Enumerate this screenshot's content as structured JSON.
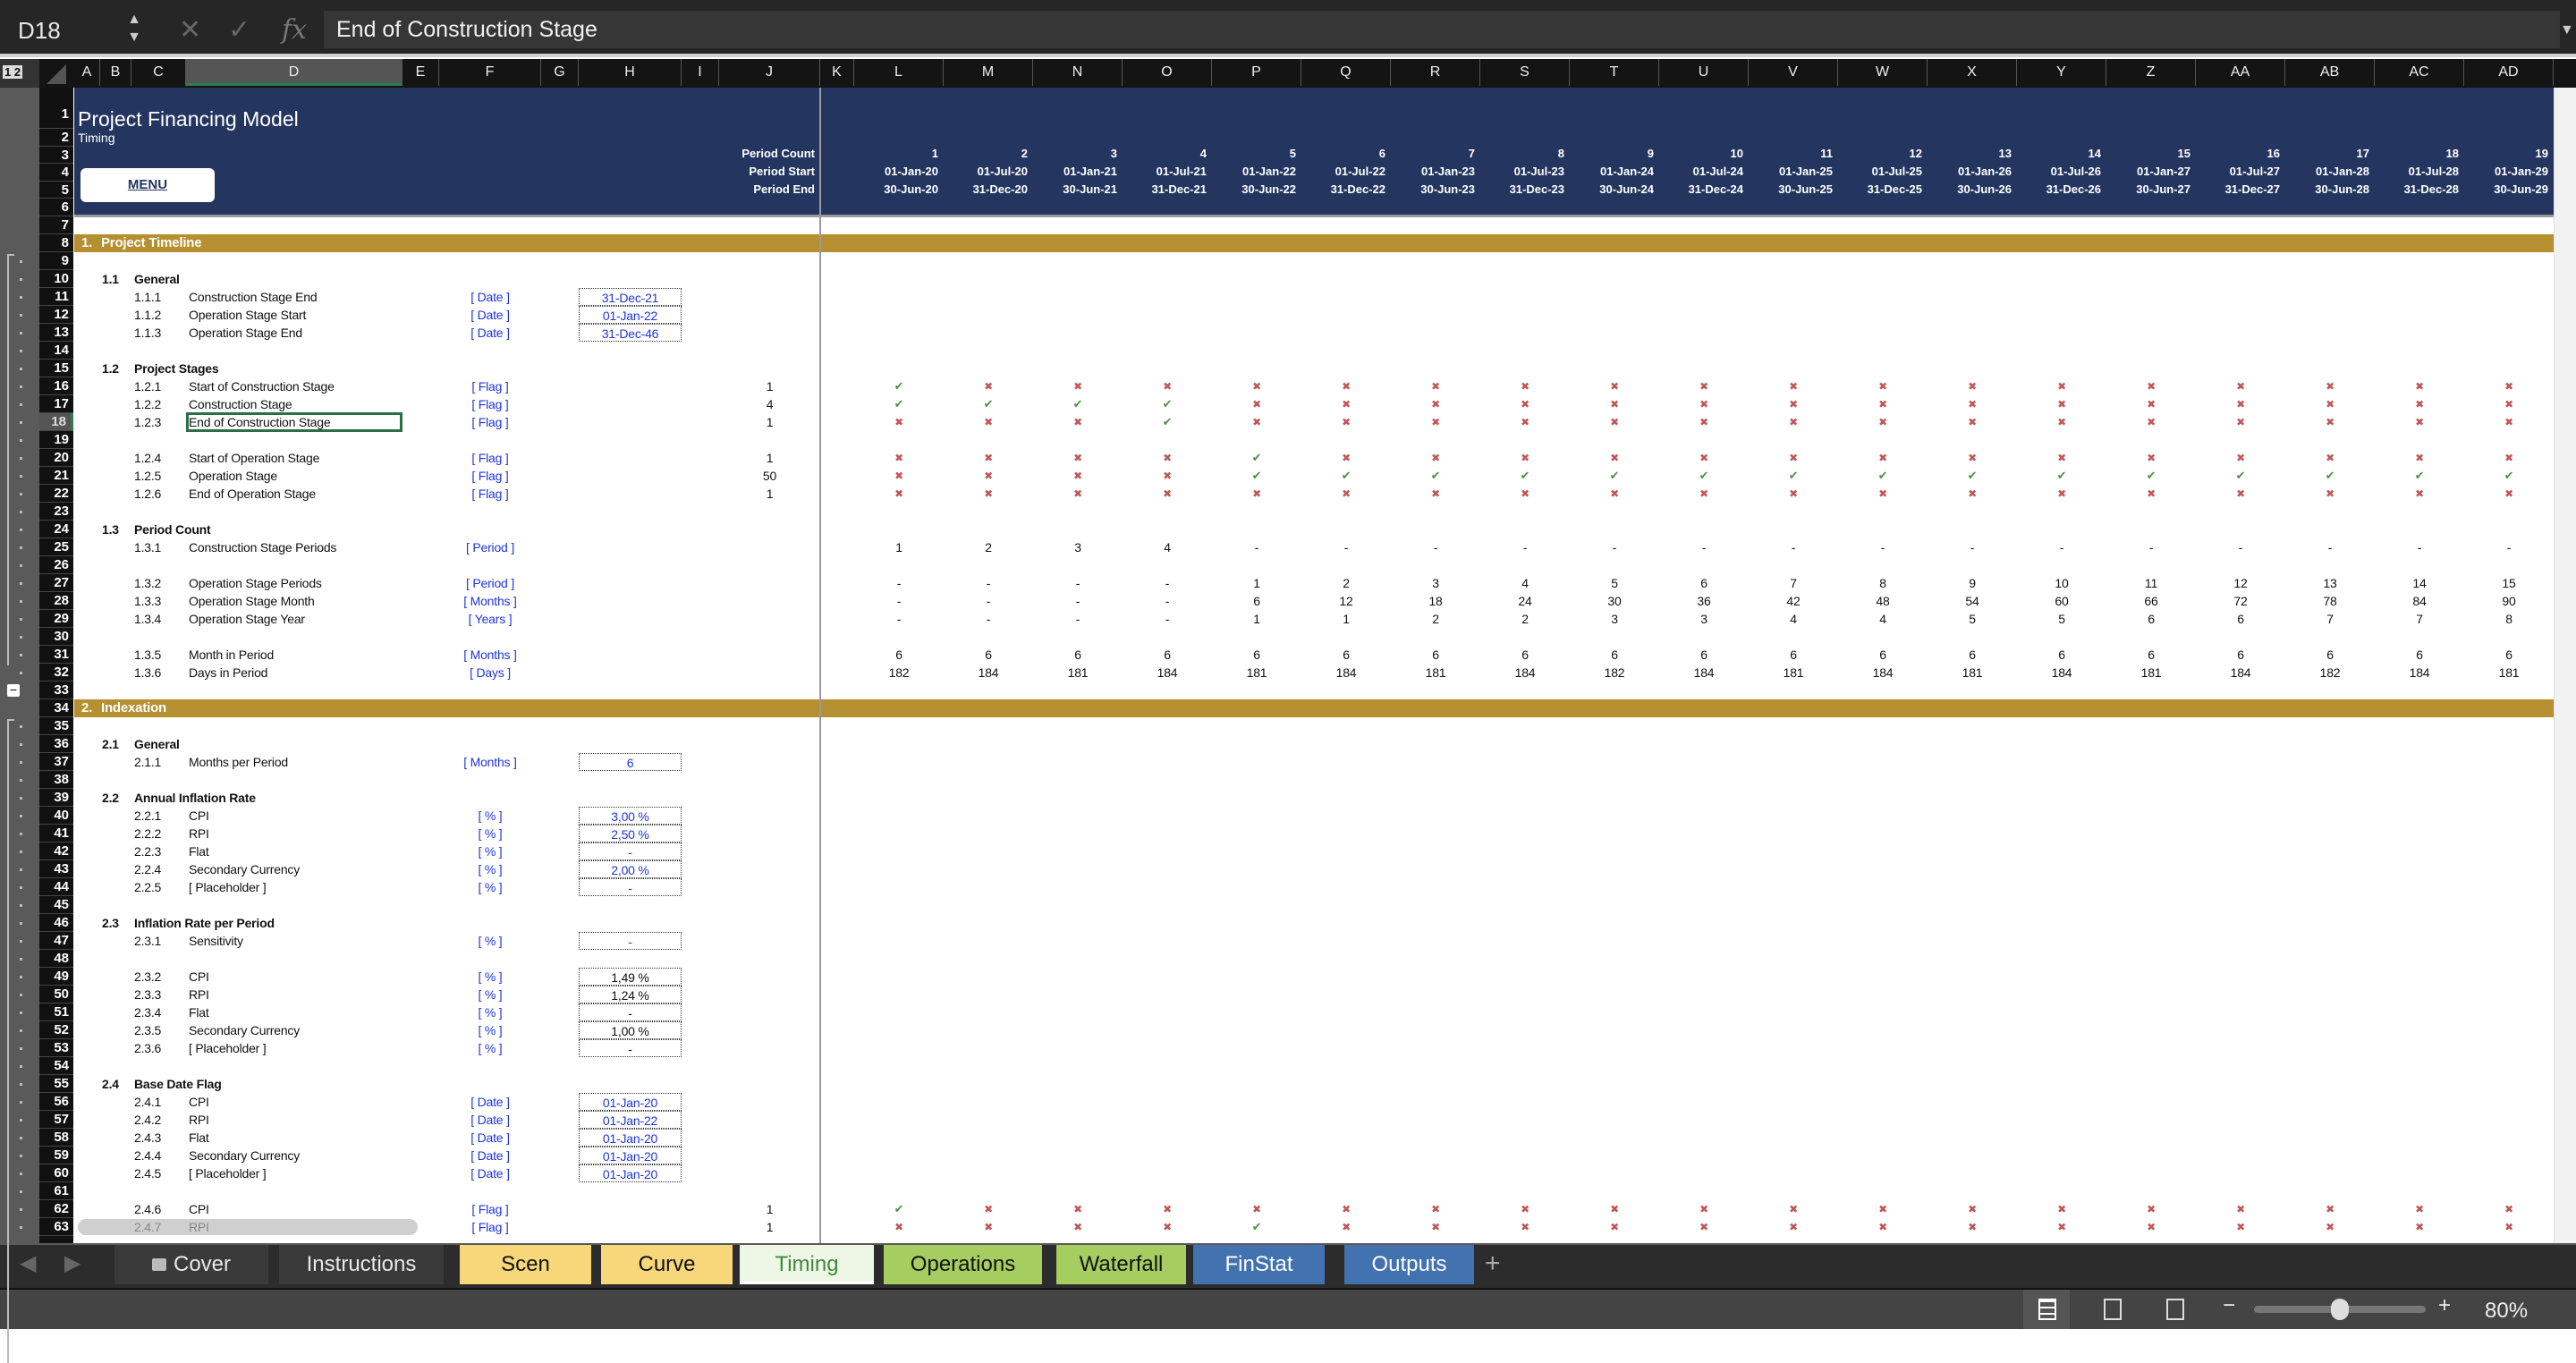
{
  "formula_bar": {
    "cell_ref": "D18",
    "formula": "End of Construction Stage",
    "cancel_icon": "x-icon",
    "enter_icon": "check-icon",
    "fx_label": "fx"
  },
  "outline_levels": "1 2",
  "columns": [
    "A",
    "B",
    "C",
    "D",
    "E",
    "F",
    "G",
    "H",
    "I",
    "J",
    "K",
    "L",
    "M",
    "N",
    "O",
    "P",
    "Q",
    "R",
    "S",
    "T",
    "U",
    "V",
    "W",
    "X",
    "Y",
    "Z",
    "AA",
    "AB",
    "AC",
    "AD"
  ],
  "selected_cell": {
    "column": "D",
    "row": 18
  },
  "header": {
    "title": "Project Financing Model",
    "subtitle": "Timing",
    "menu_button": "MENU",
    "period_count_label": "Period Count",
    "period_start_label": "Period Start",
    "period_end_label": "Period End",
    "banner_color": "#243660"
  },
  "periods": [
    {
      "count": "1",
      "start": "01-Jan-20",
      "end": "30-Jun-20"
    },
    {
      "count": "2",
      "start": "01-Jul-20",
      "end": "31-Dec-20"
    },
    {
      "count": "3",
      "start": "01-Jan-21",
      "end": "30-Jun-21"
    },
    {
      "count": "4",
      "start": "01-Jul-21",
      "end": "31-Dec-21"
    },
    {
      "count": "5",
      "start": "01-Jan-22",
      "end": "30-Jun-22"
    },
    {
      "count": "6",
      "start": "01-Jul-22",
      "end": "31-Dec-22"
    },
    {
      "count": "7",
      "start": "01-Jan-23",
      "end": "30-Jun-23"
    },
    {
      "count": "8",
      "start": "01-Jul-23",
      "end": "31-Dec-23"
    },
    {
      "count": "9",
      "start": "01-Jan-24",
      "end": "30-Jun-24"
    },
    {
      "count": "10",
      "start": "01-Jul-24",
      "end": "31-Dec-24"
    },
    {
      "count": "11",
      "start": "01-Jan-25",
      "end": "30-Jun-25"
    },
    {
      "count": "12",
      "start": "01-Jul-25",
      "end": "31-Dec-25"
    },
    {
      "count": "13",
      "start": "01-Jan-26",
      "end": "30-Jun-26"
    },
    {
      "count": "14",
      "start": "01-Jul-26",
      "end": "31-Dec-26"
    },
    {
      "count": "15",
      "start": "01-Jan-27",
      "end": "30-Jun-27"
    },
    {
      "count": "16",
      "start": "01-Jul-27",
      "end": "31-Dec-27"
    },
    {
      "count": "17",
      "start": "01-Jan-28",
      "end": "30-Jun-28"
    },
    {
      "count": "18",
      "start": "01-Jul-28",
      "end": "31-Dec-28"
    },
    {
      "count": "19",
      "start": "01-Jan-29",
      "end": "30-Jun-29"
    }
  ],
  "colors": {
    "section": "#b68f30",
    "input_text": "#1f35e0",
    "flag_true": "#4f8f45",
    "flag_false": "#c25656"
  },
  "rows": [
    {
      "r": 7,
      "type": "blank"
    },
    {
      "r": 8,
      "type": "section",
      "num": "1.",
      "label": "Project Timeline"
    },
    {
      "r": 9,
      "type": "blank"
    },
    {
      "r": 10,
      "type": "sub",
      "num": "1.1",
      "label": "General"
    },
    {
      "r": 11,
      "type": "input",
      "num": "1.1.1",
      "label": "Construction Stage End",
      "unit": "[ Date ]",
      "value": "31-Dec-21"
    },
    {
      "r": 12,
      "type": "input",
      "num": "1.1.2",
      "label": "Operation Stage Start",
      "unit": "[ Date ]",
      "value": "01-Jan-22"
    },
    {
      "r": 13,
      "type": "input",
      "num": "1.1.3",
      "label": "Operation Stage End",
      "unit": "[ Date ]",
      "value": "31-Dec-46"
    },
    {
      "r": 14,
      "type": "blank"
    },
    {
      "r": 15,
      "type": "sub",
      "num": "1.2",
      "label": "Project Stages"
    },
    {
      "r": 16,
      "type": "flag",
      "num": "1.2.1",
      "label": "Start of Construction Stage",
      "unit": "[ Flag ]",
      "total": "1",
      "flags": [
        1,
        0,
        0,
        0,
        0,
        0,
        0,
        0,
        0,
        0,
        0,
        0,
        0,
        0,
        0,
        0,
        0,
        0,
        0
      ]
    },
    {
      "r": 17,
      "type": "flag",
      "num": "1.2.2",
      "label": "Construction Stage",
      "unit": "[ Flag ]",
      "total": "4",
      "flags": [
        1,
        1,
        1,
        1,
        0,
        0,
        0,
        0,
        0,
        0,
        0,
        0,
        0,
        0,
        0,
        0,
        0,
        0,
        0
      ]
    },
    {
      "r": 18,
      "type": "flag",
      "num": "1.2.3",
      "label": "End of Construction Stage",
      "unit": "[ Flag ]",
      "total": "1",
      "flags": [
        0,
        0,
        0,
        1,
        0,
        0,
        0,
        0,
        0,
        0,
        0,
        0,
        0,
        0,
        0,
        0,
        0,
        0,
        0
      ]
    },
    {
      "r": 19,
      "type": "blank"
    },
    {
      "r": 20,
      "type": "flag",
      "num": "1.2.4",
      "label": "Start of Operation Stage",
      "unit": "[ Flag ]",
      "total": "1",
      "flags": [
        0,
        0,
        0,
        0,
        1,
        0,
        0,
        0,
        0,
        0,
        0,
        0,
        0,
        0,
        0,
        0,
        0,
        0,
        0
      ]
    },
    {
      "r": 21,
      "type": "flag",
      "num": "1.2.5",
      "label": "Operation Stage",
      "unit": "[ Flag ]",
      "total": "50",
      "flags": [
        0,
        0,
        0,
        0,
        1,
        1,
        1,
        1,
        1,
        1,
        1,
        1,
        1,
        1,
        1,
        1,
        1,
        1,
        1
      ]
    },
    {
      "r": 22,
      "type": "flag",
      "num": "1.2.6",
      "label": "End of Operation Stage",
      "unit": "[ Flag ]",
      "total": "1",
      "flags": [
        0,
        0,
        0,
        0,
        0,
        0,
        0,
        0,
        0,
        0,
        0,
        0,
        0,
        0,
        0,
        0,
        0,
        0,
        0
      ]
    },
    {
      "r": 23,
      "type": "blank"
    },
    {
      "r": 24,
      "type": "sub",
      "num": "1.3",
      "label": "Period Count"
    },
    {
      "r": 25,
      "type": "series",
      "num": "1.3.1",
      "label": "Construction Stage Periods",
      "unit": "[ Period ]",
      "values": [
        "1",
        "2",
        "3",
        "4",
        "-",
        "-",
        "-",
        "-",
        "-",
        "-",
        "-",
        "-",
        "-",
        "-",
        "-",
        "-",
        "-",
        "-",
        "-"
      ]
    },
    {
      "r": 26,
      "type": "blank"
    },
    {
      "r": 27,
      "type": "series",
      "num": "1.3.2",
      "label": "Operation Stage Periods",
      "unit": "[ Period ]",
      "values": [
        "-",
        "-",
        "-",
        "-",
        "1",
        "2",
        "3",
        "4",
        "5",
        "6",
        "7",
        "8",
        "9",
        "10",
        "11",
        "12",
        "13",
        "14",
        "15"
      ]
    },
    {
      "r": 28,
      "type": "series",
      "num": "1.3.3",
      "label": "Operation Stage Month",
      "unit": "[ Months ]",
      "values": [
        "-",
        "-",
        "-",
        "-",
        "6",
        "12",
        "18",
        "24",
        "30",
        "36",
        "42",
        "48",
        "54",
        "60",
        "66",
        "72",
        "78",
        "84",
        "90"
      ]
    },
    {
      "r": 29,
      "type": "series",
      "num": "1.3.4",
      "label": "Operation Stage Year",
      "unit": "[ Years ]",
      "values": [
        "-",
        "-",
        "-",
        "-",
        "1",
        "1",
        "2",
        "2",
        "3",
        "3",
        "4",
        "4",
        "5",
        "5",
        "6",
        "6",
        "7",
        "7",
        "8"
      ]
    },
    {
      "r": 30,
      "type": "blank"
    },
    {
      "r": 31,
      "type": "series",
      "num": "1.3.5",
      "label": "Month in Period",
      "unit": "[ Months ]",
      "values": [
        "6",
        "6",
        "6",
        "6",
        "6",
        "6",
        "6",
        "6",
        "6",
        "6",
        "6",
        "6",
        "6",
        "6",
        "6",
        "6",
        "6",
        "6",
        "6"
      ]
    },
    {
      "r": 32,
      "type": "series",
      "num": "1.3.6",
      "label": "Days in Period",
      "unit": "[ Days ]",
      "values": [
        "182",
        "184",
        "181",
        "184",
        "181",
        "184",
        "181",
        "184",
        "182",
        "184",
        "181",
        "184",
        "181",
        "184",
        "181",
        "184",
        "182",
        "184",
        "181"
      ]
    },
    {
      "r": 33,
      "type": "blank"
    },
    {
      "r": 34,
      "type": "section",
      "num": "2.",
      "label": "Indexation"
    },
    {
      "r": 35,
      "type": "blank"
    },
    {
      "r": 36,
      "type": "sub",
      "num": "2.1",
      "label": "General"
    },
    {
      "r": 37,
      "type": "input",
      "num": "2.1.1",
      "label": "Months per Period",
      "unit": "[ Months ]",
      "value": "6"
    },
    {
      "r": 38,
      "type": "blank"
    },
    {
      "r": 39,
      "type": "sub",
      "num": "2.2",
      "label": "Annual Inflation Rate"
    },
    {
      "r": 40,
      "type": "input",
      "num": "2.2.1",
      "label": "CPI",
      "unit": "[ % ]",
      "value": "3,00 %"
    },
    {
      "r": 41,
      "type": "input",
      "num": "2.2.2",
      "label": "RPI",
      "unit": "[ % ]",
      "value": "2,50 %"
    },
    {
      "r": 42,
      "type": "input",
      "num": "2.2.3",
      "label": "Flat",
      "unit": "[ % ]",
      "value": "-"
    },
    {
      "r": 43,
      "type": "input",
      "num": "2.2.4",
      "label": "Secondary Currency",
      "unit": "[ % ]",
      "value": "2,00 %"
    },
    {
      "r": 44,
      "type": "input",
      "num": "2.2.5",
      "label": "[ Placeholder ]",
      "unit": "[ % ]",
      "value": "-"
    },
    {
      "r": 45,
      "type": "blank"
    },
    {
      "r": 46,
      "type": "sub",
      "num": "2.3",
      "label": "Inflation Rate per Period"
    },
    {
      "r": 47,
      "type": "input",
      "num": "2.3.1",
      "label": "Sensitivity",
      "unit": "[ % ]",
      "value": "-"
    },
    {
      "r": 48,
      "type": "blank"
    },
    {
      "r": 49,
      "type": "calc",
      "num": "2.3.2",
      "label": "CPI",
      "unit": "[ % ]",
      "value": "1,49 %"
    },
    {
      "r": 50,
      "type": "calc",
      "num": "2.3.3",
      "label": "RPI",
      "unit": "[ % ]",
      "value": "1,24 %"
    },
    {
      "r": 51,
      "type": "calc",
      "num": "2.3.4",
      "label": "Flat",
      "unit": "[ % ]",
      "value": "-"
    },
    {
      "r": 52,
      "type": "calc",
      "num": "2.3.5",
      "label": "Secondary Currency",
      "unit": "[ % ]",
      "value": "1,00 %"
    },
    {
      "r": 53,
      "type": "calc",
      "num": "2.3.6",
      "label": "[ Placeholder ]",
      "unit": "[ % ]",
      "value": "-"
    },
    {
      "r": 54,
      "type": "blank"
    },
    {
      "r": 55,
      "type": "sub",
      "num": "2.4",
      "label": "Base Date Flag"
    },
    {
      "r": 56,
      "type": "input",
      "num": "2.4.1",
      "label": "CPI",
      "unit": "[ Date ]",
      "value": "01-Jan-20"
    },
    {
      "r": 57,
      "type": "input",
      "num": "2.4.2",
      "label": "RPI",
      "unit": "[ Date ]",
      "value": "01-Jan-22"
    },
    {
      "r": 58,
      "type": "input",
      "num": "2.4.3",
      "label": "Flat",
      "unit": "[ Date ]",
      "value": "01-Jan-20"
    },
    {
      "r": 59,
      "type": "input",
      "num": "2.4.4",
      "label": "Secondary Currency",
      "unit": "[ Date ]",
      "value": "01-Jan-20"
    },
    {
      "r": 60,
      "type": "input",
      "num": "2.4.5",
      "label": "[ Placeholder ]",
      "unit": "[ Date ]",
      "value": "01-Jan-20"
    },
    {
      "r": 61,
      "type": "blank"
    },
    {
      "r": 62,
      "type": "flag",
      "num": "2.4.6",
      "label": "CPI",
      "unit": "[ Flag ]",
      "total": "1",
      "flags": [
        1,
        0,
        0,
        0,
        0,
        0,
        0,
        0,
        0,
        0,
        0,
        0,
        0,
        0,
        0,
        0,
        0,
        0,
        0
      ]
    },
    {
      "r": 63,
      "type": "flag",
      "num": "2.4.7",
      "label": "RPI",
      "unit": "[ Flag ]",
      "total": "1",
      "flags": [
        0,
        0,
        0,
        0,
        1,
        0,
        0,
        0,
        0,
        0,
        0,
        0,
        0,
        0,
        0,
        0,
        0,
        0,
        0
      ],
      "dimmed": true
    }
  ],
  "tabs": [
    {
      "label": "Cover",
      "color": "#3a3a3a",
      "text": "#e8e8e8",
      "locked": true
    },
    {
      "label": "Instructions",
      "color": "#3a3a3a",
      "text": "#e8e8e8"
    },
    {
      "label": "Scen",
      "color": "#f7d77a",
      "text": "#111"
    },
    {
      "label": "Curve",
      "color": "#f7d77a",
      "text": "#111"
    },
    {
      "label": "Timing",
      "color": "#eef6e6",
      "text": "#3d8a3d",
      "active": true
    },
    {
      "label": "Operations",
      "color": "#a5cd60",
      "text": "#111"
    },
    {
      "label": "Waterfall",
      "color": "#a5cd60",
      "text": "#111"
    },
    {
      "label": "FinStat",
      "color": "#4272b0",
      "text": "#fff"
    },
    {
      "label": "Outputs",
      "color": "#4272b0",
      "text": "#fff"
    }
  ],
  "add_sheet": "+",
  "status": {
    "zoom": "80%",
    "zoom_level": 80,
    "zoom_out": "−",
    "zoom_in": "+"
  }
}
